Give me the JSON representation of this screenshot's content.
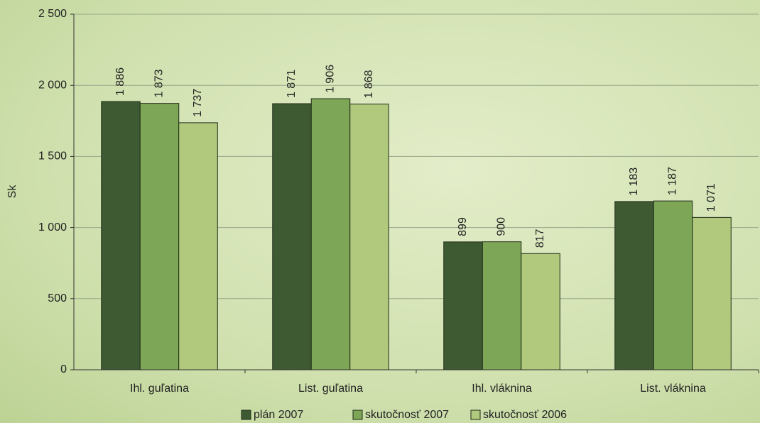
{
  "chart_data": {
    "type": "bar",
    "y_label": "Sk",
    "categories": [
      "Ihl. guľatina",
      "List. guľatina",
      "Ihl. vláknina",
      "List. vláknina"
    ],
    "series": [
      {
        "name": "plán 2007",
        "color": "#3e5a33",
        "values": [
          1886,
          1871,
          899,
          1183
        ],
        "value_labels": [
          "1 886",
          "1 871",
          "899",
          "1 183"
        ]
      },
      {
        "name": "skutočnosť 2007",
        "color": "#7ea657",
        "values": [
          1873,
          1906,
          900,
          1187
        ],
        "value_labels": [
          "1 873",
          "1 906",
          "900",
          "1 187"
        ]
      },
      {
        "name": "skutočnosť 2006",
        "color": "#b1c97d",
        "values": [
          1737,
          1868,
          817,
          1071
        ],
        "value_labels": [
          "1 737",
          "1 868",
          "817",
          "1 071"
        ]
      }
    ],
    "ylim": [
      0,
      2500
    ],
    "yticks": [
      0,
      500,
      {
        "value": 1000,
        "label": "1 000"
      },
      {
        "value": 1500,
        "label": "1 500"
      },
      {
        "value": 2000,
        "label": "2 000"
      },
      {
        "value": 2500,
        "label": "2 500"
      }
    ],
    "grid": true,
    "legend": "bottom"
  }
}
